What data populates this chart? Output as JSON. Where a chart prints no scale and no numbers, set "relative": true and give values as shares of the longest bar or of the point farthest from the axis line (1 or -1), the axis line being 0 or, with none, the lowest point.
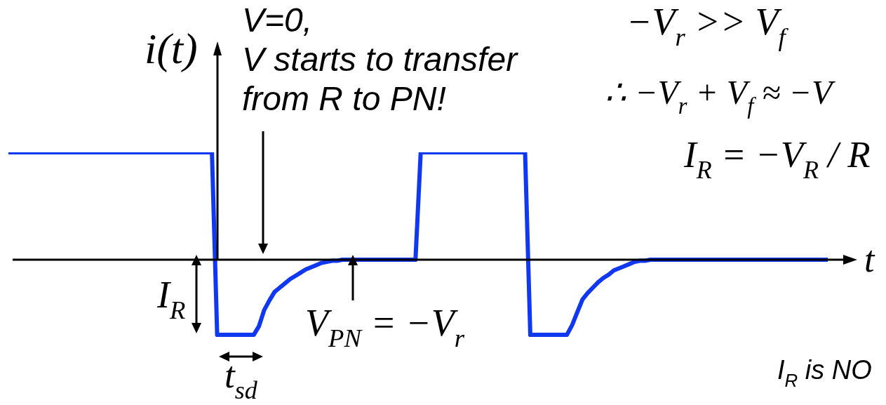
{
  "chart_data": {
    "type": "line",
    "relative": true,
    "xlabel": "t",
    "ylabel": "i(t)",
    "color": "#1038f0",
    "categories": [
      null,
      null,
      null,
      null,
      null,
      null,
      null,
      null,
      null,
      null,
      null,
      null,
      null,
      null,
      null,
      null,
      null,
      null,
      null,
      null,
      null,
      null,
      null,
      null,
      null,
      null,
      null,
      null,
      null,
      null,
      null,
      null,
      null,
      null,
      null,
      null,
      null,
      null,
      null,
      null,
      null,
      null,
      null,
      null,
      null,
      null,
      null,
      null,
      null,
      null,
      null,
      null,
      null,
      null,
      null,
      null,
      null,
      null,
      null,
      null,
      null,
      null,
      null,
      null,
      null,
      null,
      null,
      null,
      null,
      null,
      null,
      null,
      null,
      null,
      null,
      null,
      null,
      null,
      null,
      null,
      null,
      null,
      null,
      null,
      null,
      null,
      null,
      null,
      null,
      null,
      null,
      null,
      null,
      null,
      null,
      null,
      null,
      null,
      null,
      null,
      null,
      null,
      null,
      null,
      null,
      null,
      null,
      null,
      null,
      null,
      null,
      null,
      null,
      null,
      null,
      null,
      null,
      null,
      null,
      null,
      null,
      null,
      null,
      null,
      null,
      null,
      null,
      null,
      null,
      null,
      null,
      null,
      null,
      null,
      null,
      null,
      null,
      null,
      null,
      null,
      null,
      null,
      null,
      null,
      null,
      null,
      null,
      null,
      null,
      null,
      null,
      null,
      null,
      null,
      null,
      null,
      null,
      null
    ],
    "values": [
      1,
      1,
      1,
      1,
      1,
      1,
      1,
      1,
      1,
      1,
      1,
      1,
      1,
      1,
      1,
      1,
      1,
      1,
      1,
      1,
      1,
      1,
      1,
      1,
      1,
      1,
      1,
      1,
      1,
      1,
      1,
      1,
      1,
      1,
      1,
      1,
      1,
      1,
      1,
      1,
      -0.7,
      -0.7,
      -0.7,
      -0.7,
      -0.7,
      -0.7,
      -0.7,
      -0.7,
      -0.62,
      -0.47,
      -0.38,
      -0.3,
      -0.26,
      -0.22,
      -0.18,
      -0.15,
      -0.12,
      -0.09,
      -0.07,
      -0.05,
      -0.03,
      -0.02,
      -0.01,
      -0.01,
      0,
      0,
      0,
      0,
      0,
      0,
      0,
      0,
      0,
      0,
      0,
      0,
      0,
      0,
      0,
      1,
      1,
      1,
      1,
      1,
      1,
      1,
      1,
      1,
      1,
      1,
      1,
      1,
      1,
      1,
      1,
      1,
      1,
      1,
      1,
      1,
      -0.7,
      -0.7,
      -0.7,
      -0.7,
      -0.7,
      -0.7,
      -0.7,
      -0.7,
      -0.61,
      -0.49,
      -0.37,
      -0.31,
      -0.26,
      -0.21,
      -0.17,
      -0.14,
      -0.1,
      -0.08,
      -0.06,
      -0.04,
      -0.02,
      -0.01,
      -0.01,
      0,
      0,
      0,
      0,
      0,
      0,
      0,
      0,
      0,
      0,
      0,
      0,
      0,
      0,
      0,
      0,
      0,
      0,
      0,
      0,
      0,
      0,
      0,
      0,
      0,
      0,
      0,
      0,
      0,
      0,
      0,
      0,
      0,
      0,
      0
    ],
    "annotations": [
      "V=0,\nV starts to transfer\nfrom R to PN!",
      "V$_{PN}$ = −V$_{r}$",
      "I$_{R}$",
      "t$_{sd}$",
      "−V$_{r}$ >> V$_{f}$",
      "∴ −V$_{r}$ + V$_{f}$ ≈ −V",
      "I$_{R}$ = −V$_{R}$ / R",
      "I$_{R}$ is NO"
    ]
  }
}
